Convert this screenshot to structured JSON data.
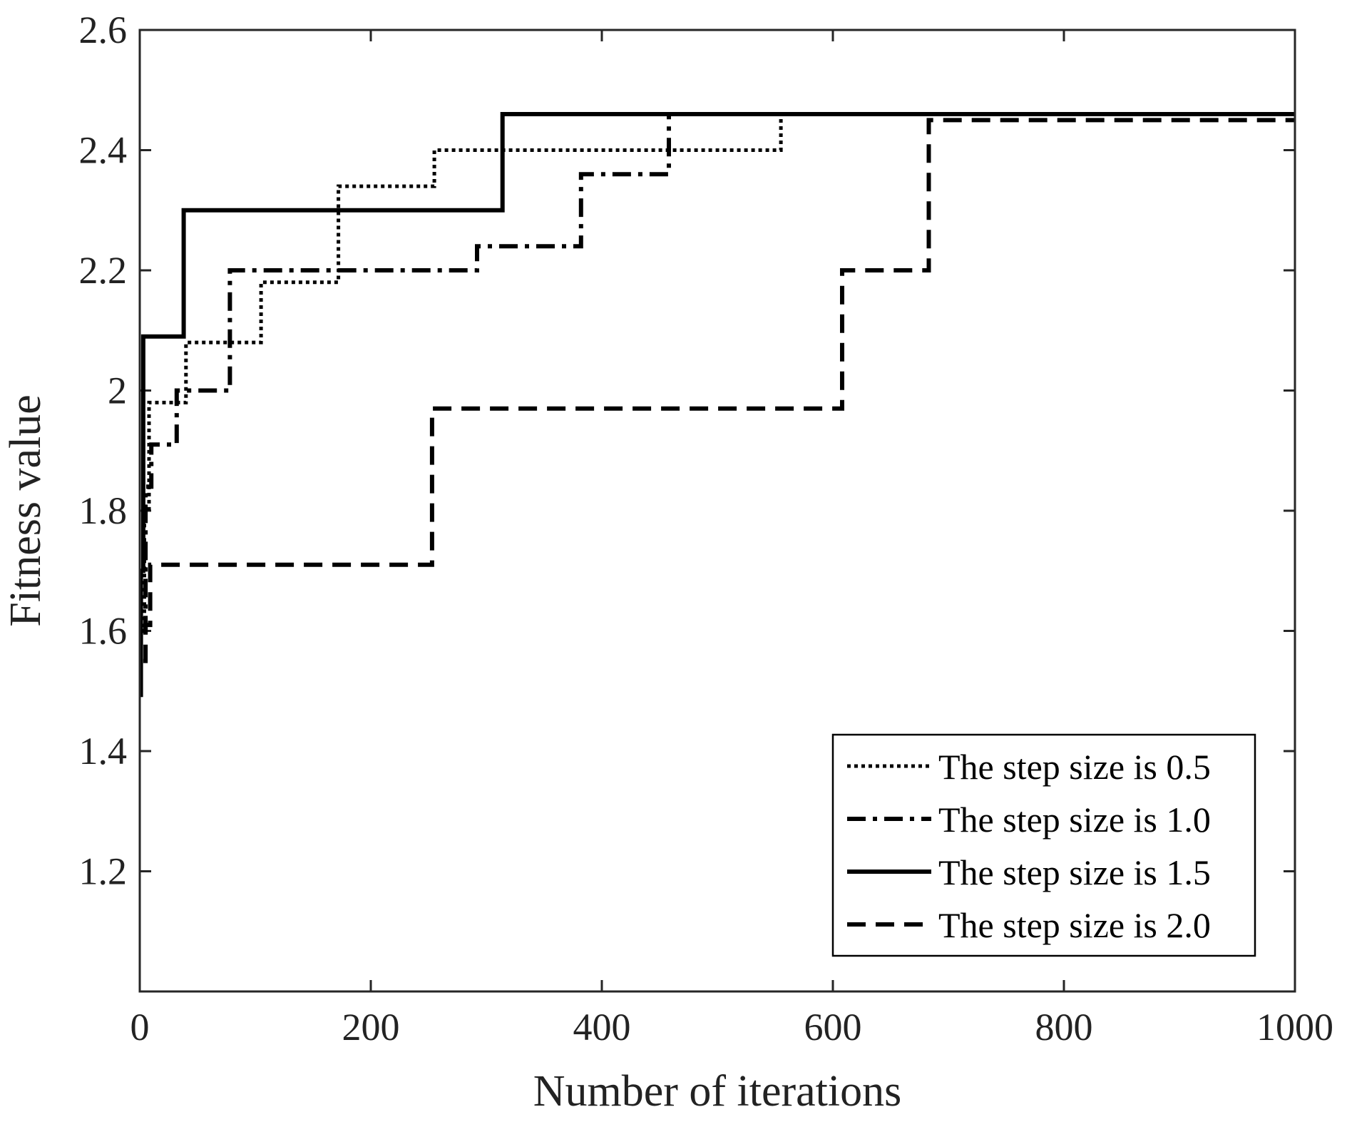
{
  "chart_data": {
    "type": "line",
    "title": "",
    "xlabel": "Number of iterations",
    "ylabel": "Fitness value",
    "xlim": [
      0,
      1000
    ],
    "ylim": [
      1.0,
      2.6
    ],
    "xticks": [
      "0",
      "200",
      "400",
      "600",
      "800",
      "1000"
    ],
    "yticks": [
      "1.2",
      "1.4",
      "1.6",
      "1.8",
      "2",
      "2.2",
      "2.4",
      "2.6"
    ],
    "grid": false,
    "legend_position": "bottom-right",
    "line_color": "#000000",
    "series": [
      {
        "name": "The step size is 0.5",
        "style": "dotted",
        "x": [
          1,
          4,
          4,
          8,
          8,
          12,
          12,
          40,
          40,
          105,
          105,
          172,
          172,
          255,
          255,
          555,
          555,
          1000
        ],
        "y": [
          1.6,
          1.6,
          1.8,
          1.8,
          1.98,
          1.98,
          1.98,
          1.98,
          2.08,
          2.08,
          2.18,
          2.18,
          2.34,
          2.34,
          2.4,
          2.4,
          2.46,
          2.46
        ]
      },
      {
        "name": "The step size is 1.0",
        "style": "dashdot",
        "x": [
          2,
          5,
          5,
          10,
          10,
          32,
          32,
          78,
          78,
          292,
          292,
          382,
          382,
          458,
          458,
          1000
        ],
        "y": [
          1.6,
          1.6,
          1.84,
          1.84,
          1.91,
          1.91,
          2.0,
          2.0,
          2.2,
          2.2,
          2.24,
          2.24,
          2.36,
          2.36,
          2.46,
          2.46
        ]
      },
      {
        "name": "The step size is 1.5",
        "style": "solid",
        "x": [
          1,
          1,
          3,
          3,
          38,
          38,
          314,
          314,
          1000
        ],
        "y": [
          1.49,
          1.7,
          1.7,
          2.09,
          2.09,
          2.3,
          2.3,
          2.46,
          2.46
        ]
      },
      {
        "name": "The step size is 2.0",
        "style": "dashed",
        "x": [
          3,
          5,
          5,
          9,
          9,
          253,
          253,
          608,
          608,
          683,
          683,
          1000
        ],
        "y": [
          1.55,
          1.55,
          1.61,
          1.61,
          1.71,
          1.71,
          1.97,
          1.97,
          2.2,
          2.2,
          2.45,
          2.45
        ]
      }
    ]
  }
}
